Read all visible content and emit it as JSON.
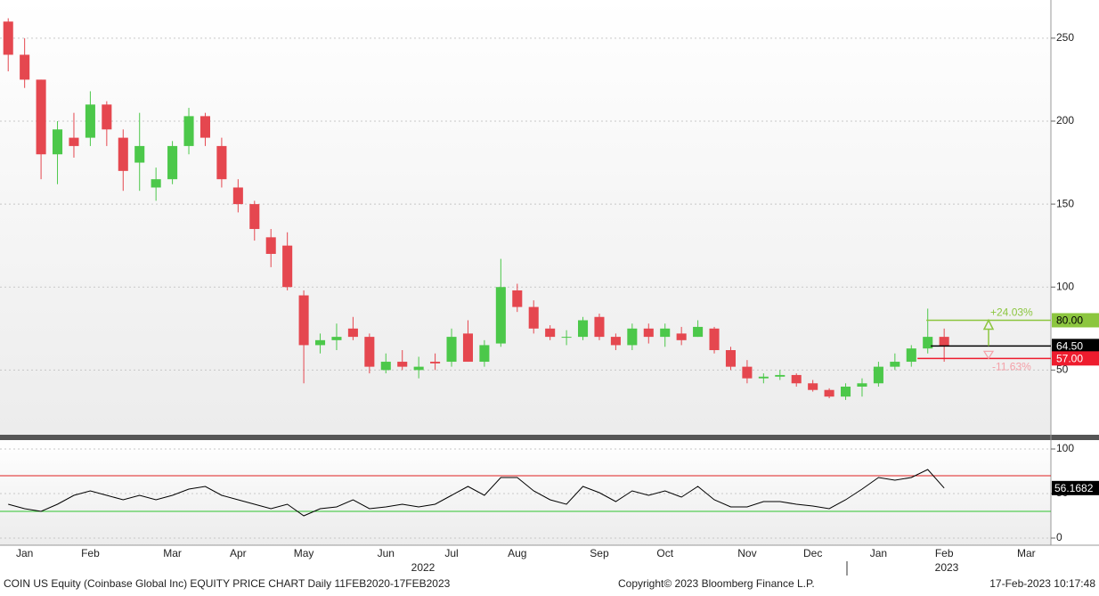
{
  "chart_data": [
    {
      "type": "candlestick",
      "categories": [
        null,
        "Jan",
        null,
        null,
        null,
        "Feb",
        null,
        null,
        null,
        null,
        "Mar",
        null,
        null,
        null,
        "Apr",
        null,
        null,
        null,
        "May",
        null,
        null,
        null,
        null,
        "Jun",
        null,
        null,
        null,
        "Jul",
        null,
        null,
        null,
        "Aug",
        null,
        null,
        null,
        null,
        "Sep",
        null,
        null,
        null,
        "Oct",
        null,
        null,
        null,
        null,
        "Nov",
        null,
        null,
        null,
        "Dec",
        null,
        null,
        null,
        "Jan",
        null,
        null,
        null,
        "Feb",
        null,
        null,
        null,
        null,
        "Mar",
        null
      ],
      "years": [
        "2022",
        "2023"
      ],
      "open": [
        260,
        240,
        225,
        180,
        190,
        190,
        210,
        190,
        175,
        160,
        165,
        185,
        203,
        185,
        160,
        150,
        130,
        125,
        95,
        65,
        68,
        75,
        70,
        50,
        55,
        50,
        55,
        55,
        72,
        55,
        66,
        98,
        88,
        75,
        70,
        70,
        82,
        70,
        65,
        75,
        70,
        72,
        70,
        75,
        62,
        52,
        45,
        46,
        47,
        42,
        38,
        34,
        40,
        42,
        52,
        55,
        63,
        70,
        null,
        null,
        null,
        null,
        null,
        null
      ],
      "high": [
        262,
        250,
        225,
        200,
        205,
        218,
        212,
        195,
        205,
        172,
        188,
        208,
        205,
        190,
        165,
        152,
        135,
        133,
        98,
        72,
        78,
        82,
        72,
        60,
        62,
        58,
        60,
        75,
        80,
        68,
        117,
        102,
        92,
        77,
        74,
        82,
        84,
        72,
        78,
        78,
        78,
        76,
        80,
        76,
        64,
        56,
        48,
        50,
        48,
        44,
        39,
        42,
        45,
        55,
        60,
        65,
        87,
        75,
        null,
        null,
        null,
        null,
        null,
        null
      ],
      "low": [
        230,
        220,
        165,
        162,
        178,
        185,
        185,
        158,
        158,
        152,
        162,
        180,
        185,
        160,
        145,
        128,
        112,
        98,
        42,
        60,
        62,
        68,
        48,
        48,
        50,
        45,
        50,
        52,
        55,
        52,
        64,
        85,
        72,
        68,
        65,
        68,
        68,
        62,
        62,
        66,
        64,
        65,
        70,
        60,
        50,
        42,
        42,
        44,
        40,
        37,
        33,
        32,
        34,
        40,
        50,
        52,
        60,
        55,
        null,
        null,
        null,
        null,
        null,
        null
      ],
      "close": [
        240,
        225,
        180,
        195,
        185,
        210,
        195,
        170,
        185,
        165,
        185,
        203,
        190,
        165,
        150,
        135,
        120,
        100,
        65,
        68,
        70,
        70,
        52,
        55,
        52,
        52,
        54,
        70,
        55,
        65,
        100,
        88,
        75,
        70,
        70,
        80,
        70,
        65,
        75,
        70,
        75,
        68,
        76,
        62,
        52,
        45,
        46,
        47,
        42,
        38,
        34,
        40,
        42,
        52,
        55,
        63,
        70,
        64.5,
        null,
        null,
        null,
        null,
        null,
        null
      ],
      "up_color": "#4cc84a",
      "down_color": "#e5474f",
      "ylim": [
        11,
        273
      ],
      "yticks": [
        50,
        100,
        150,
        200,
        250
      ],
      "grid": true,
      "levels": [
        {
          "value": 80,
          "label": "80.00",
          "color": "#8cc63f"
        },
        {
          "value": 64.5,
          "label": "64.50",
          "color": "#000000"
        },
        {
          "value": 57,
          "label": "57.00",
          "color": "#ee1c2e"
        }
      ],
      "annotations": [
        "+24.03%",
        "-11.63%"
      ]
    },
    {
      "type": "line",
      "values": [
        38,
        33,
        30,
        38,
        48,
        53,
        48,
        43,
        48,
        43,
        48,
        55,
        58,
        48,
        43,
        38,
        33,
        38,
        25,
        33,
        35,
        43,
        33,
        35,
        38,
        35,
        38,
        48,
        58,
        48,
        68,
        68,
        53,
        43,
        38,
        58,
        51,
        41,
        53,
        48,
        53,
        46,
        58,
        43,
        35,
        35,
        41,
        41,
        38,
        36,
        33,
        43,
        55,
        68,
        65,
        68,
        77,
        56.1682,
        null,
        null,
        null,
        null,
        null,
        null
      ],
      "color": "#000000",
      "ylim": [
        -8,
        110
      ],
      "yticks": [
        0,
        50,
        100
      ],
      "grid": true,
      "bands": [
        {
          "value": 70,
          "color": "#e02020"
        },
        {
          "value": 30,
          "color": "#2ec42e"
        }
      ]
    }
  ],
  "footer": {
    "title": "COIN US Equity (Coinbase Global Inc) EQUITY PRICE CHART  Daily 11FEB2020-17FEB2023",
    "copyright": "Copyright© 2023 Bloomberg Finance L.P.",
    "timestamp": "17-Feb-2023 10:17:48"
  }
}
